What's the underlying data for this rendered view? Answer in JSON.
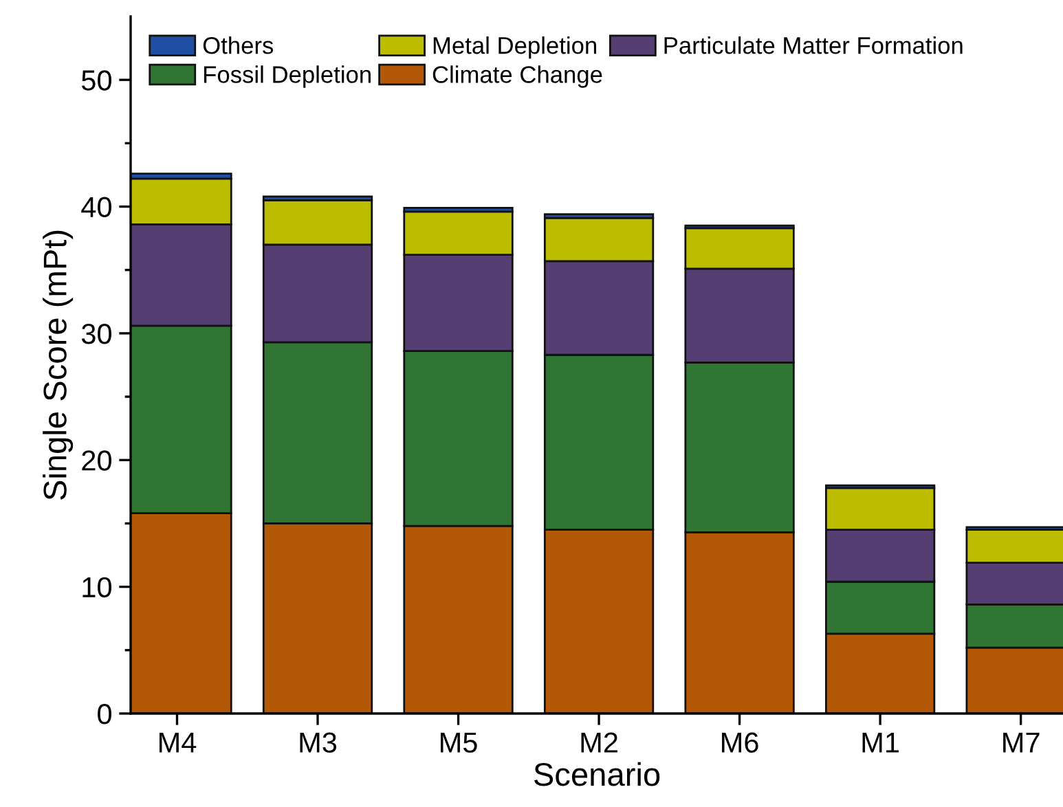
{
  "chart_data": {
    "type": "bar",
    "stacked": true,
    "xlabel": "Scenario",
    "ylabel": "Single Score (mPt)",
    "categories": [
      "M4",
      "M3",
      "M5",
      "M2",
      "M6",
      "M1",
      "M7"
    ],
    "series": [
      {
        "name": "Climate Change",
        "color": "#b35806",
        "values": [
          15.8,
          15.0,
          14.8,
          14.5,
          14.3,
          6.3,
          5.2
        ]
      },
      {
        "name": "Fossil Depletion",
        "color": "#307533",
        "values": [
          14.8,
          14.3,
          13.8,
          13.8,
          13.4,
          4.1,
          3.4
        ]
      },
      {
        "name": "Particulate Matter Formation",
        "color": "#553e72",
        "values": [
          8.0,
          7.7,
          7.6,
          7.4,
          7.4,
          4.1,
          3.3
        ]
      },
      {
        "name": "Metal Depletion",
        "color": "#bdbd00",
        "values": [
          3.6,
          3.5,
          3.4,
          3.4,
          3.2,
          3.3,
          2.6
        ]
      },
      {
        "name": "Others",
        "color": "#1f4ea3",
        "values": [
          0.4,
          0.3,
          0.3,
          0.3,
          0.2,
          0.2,
          0.2
        ]
      }
    ],
    "ylim": [
      0,
      55
    ],
    "yticks": [
      0,
      {
        "value": 5,
        "label": null
      },
      10,
      {
        "value": 15,
        "label": null
      },
      20,
      {
        "value": 25,
        "label": null
      },
      30,
      {
        "value": 35,
        "label": null
      },
      40,
      {
        "value": 45,
        "label": null
      },
      50
    ],
    "grid": false,
    "legend": "top left"
  }
}
